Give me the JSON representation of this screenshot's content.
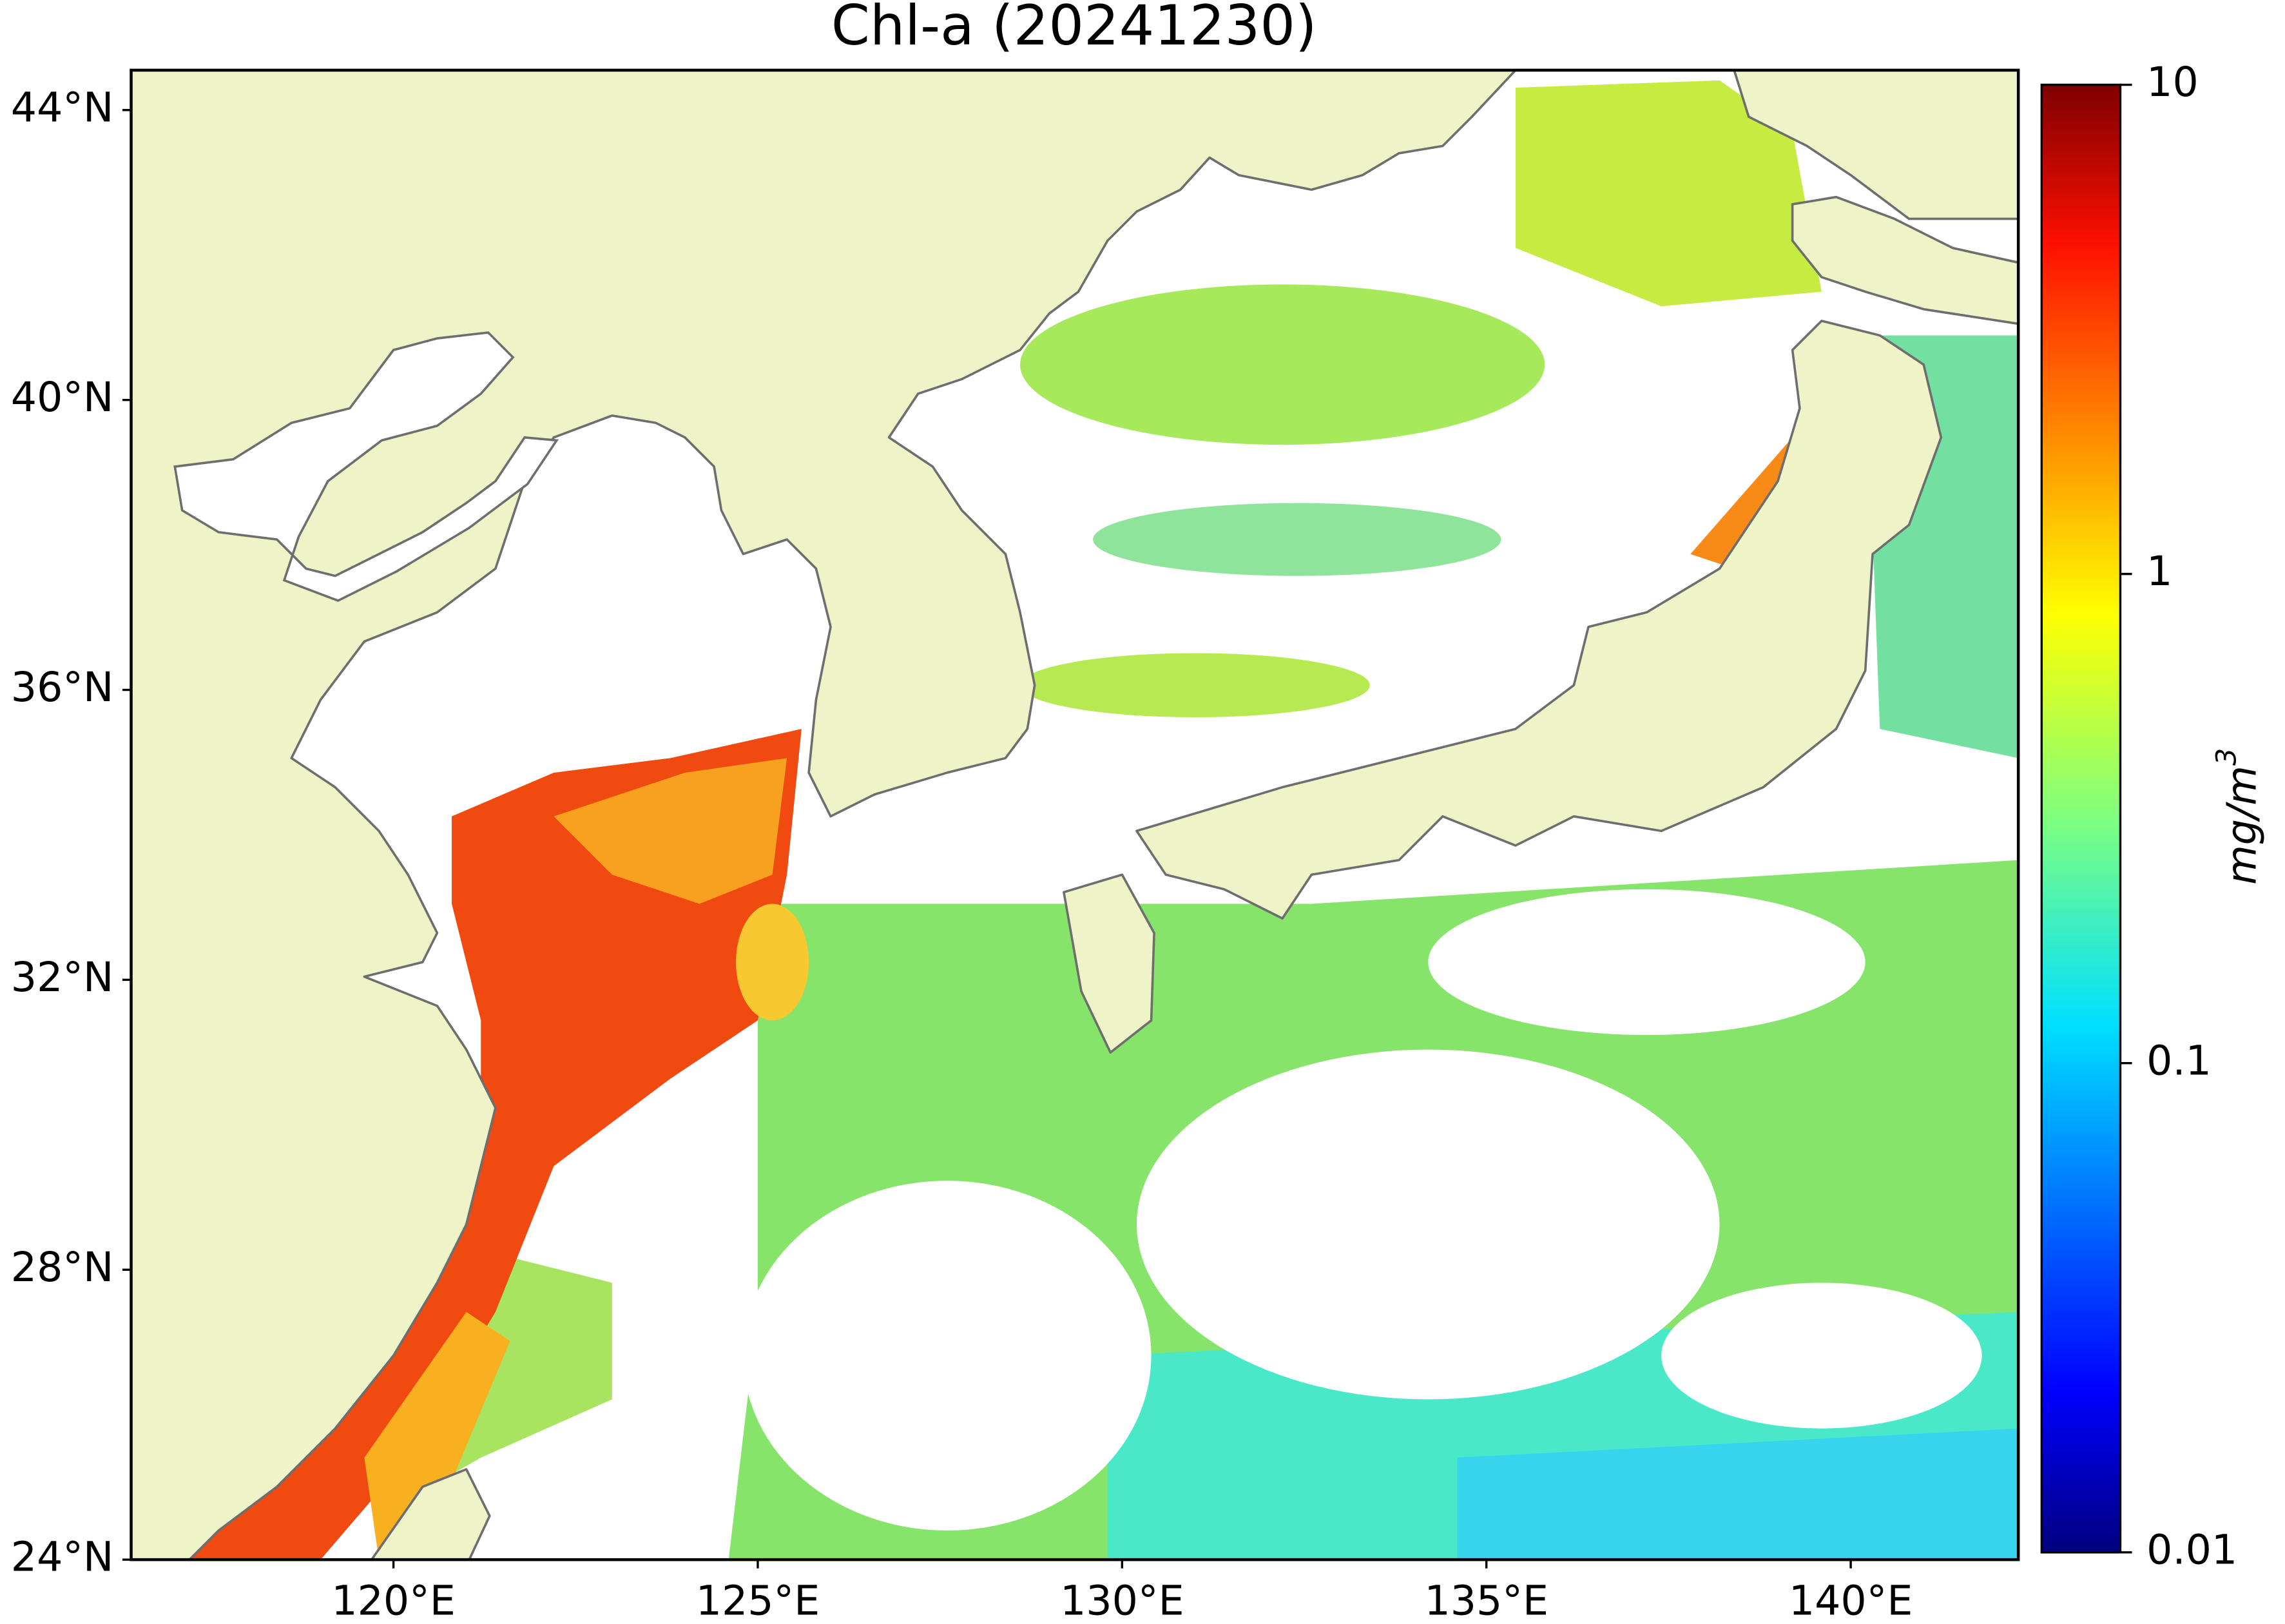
{
  "title": "Chl-a (20241230)",
  "map": {
    "xlim": [
      116.4,
      142.3
    ],
    "ylim": [
      24,
      44.55
    ],
    "xticks": [
      {
        "value": 120,
        "label": "120°E"
      },
      {
        "value": 125,
        "label": "125°E"
      },
      {
        "value": 130,
        "label": "130°E"
      },
      {
        "value": 135,
        "label": "135°E"
      },
      {
        "value": 140,
        "label": "140°E"
      }
    ],
    "yticks": [
      {
        "value": 24,
        "label": "24°N"
      },
      {
        "value": 28,
        "label": "28°N"
      },
      {
        "value": 32,
        "label": "32°N"
      },
      {
        "value": 36,
        "label": "36°N"
      },
      {
        "value": 40,
        "label": "40°N"
      },
      {
        "value": 44,
        "label": "44°N"
      }
    ]
  },
  "colorbar": {
    "label": "mg/m",
    "label_exponent": "3",
    "scale": "log",
    "lim": [
      0.01,
      10
    ],
    "ticks": [
      0.01,
      0.1,
      1,
      10
    ]
  }
}
